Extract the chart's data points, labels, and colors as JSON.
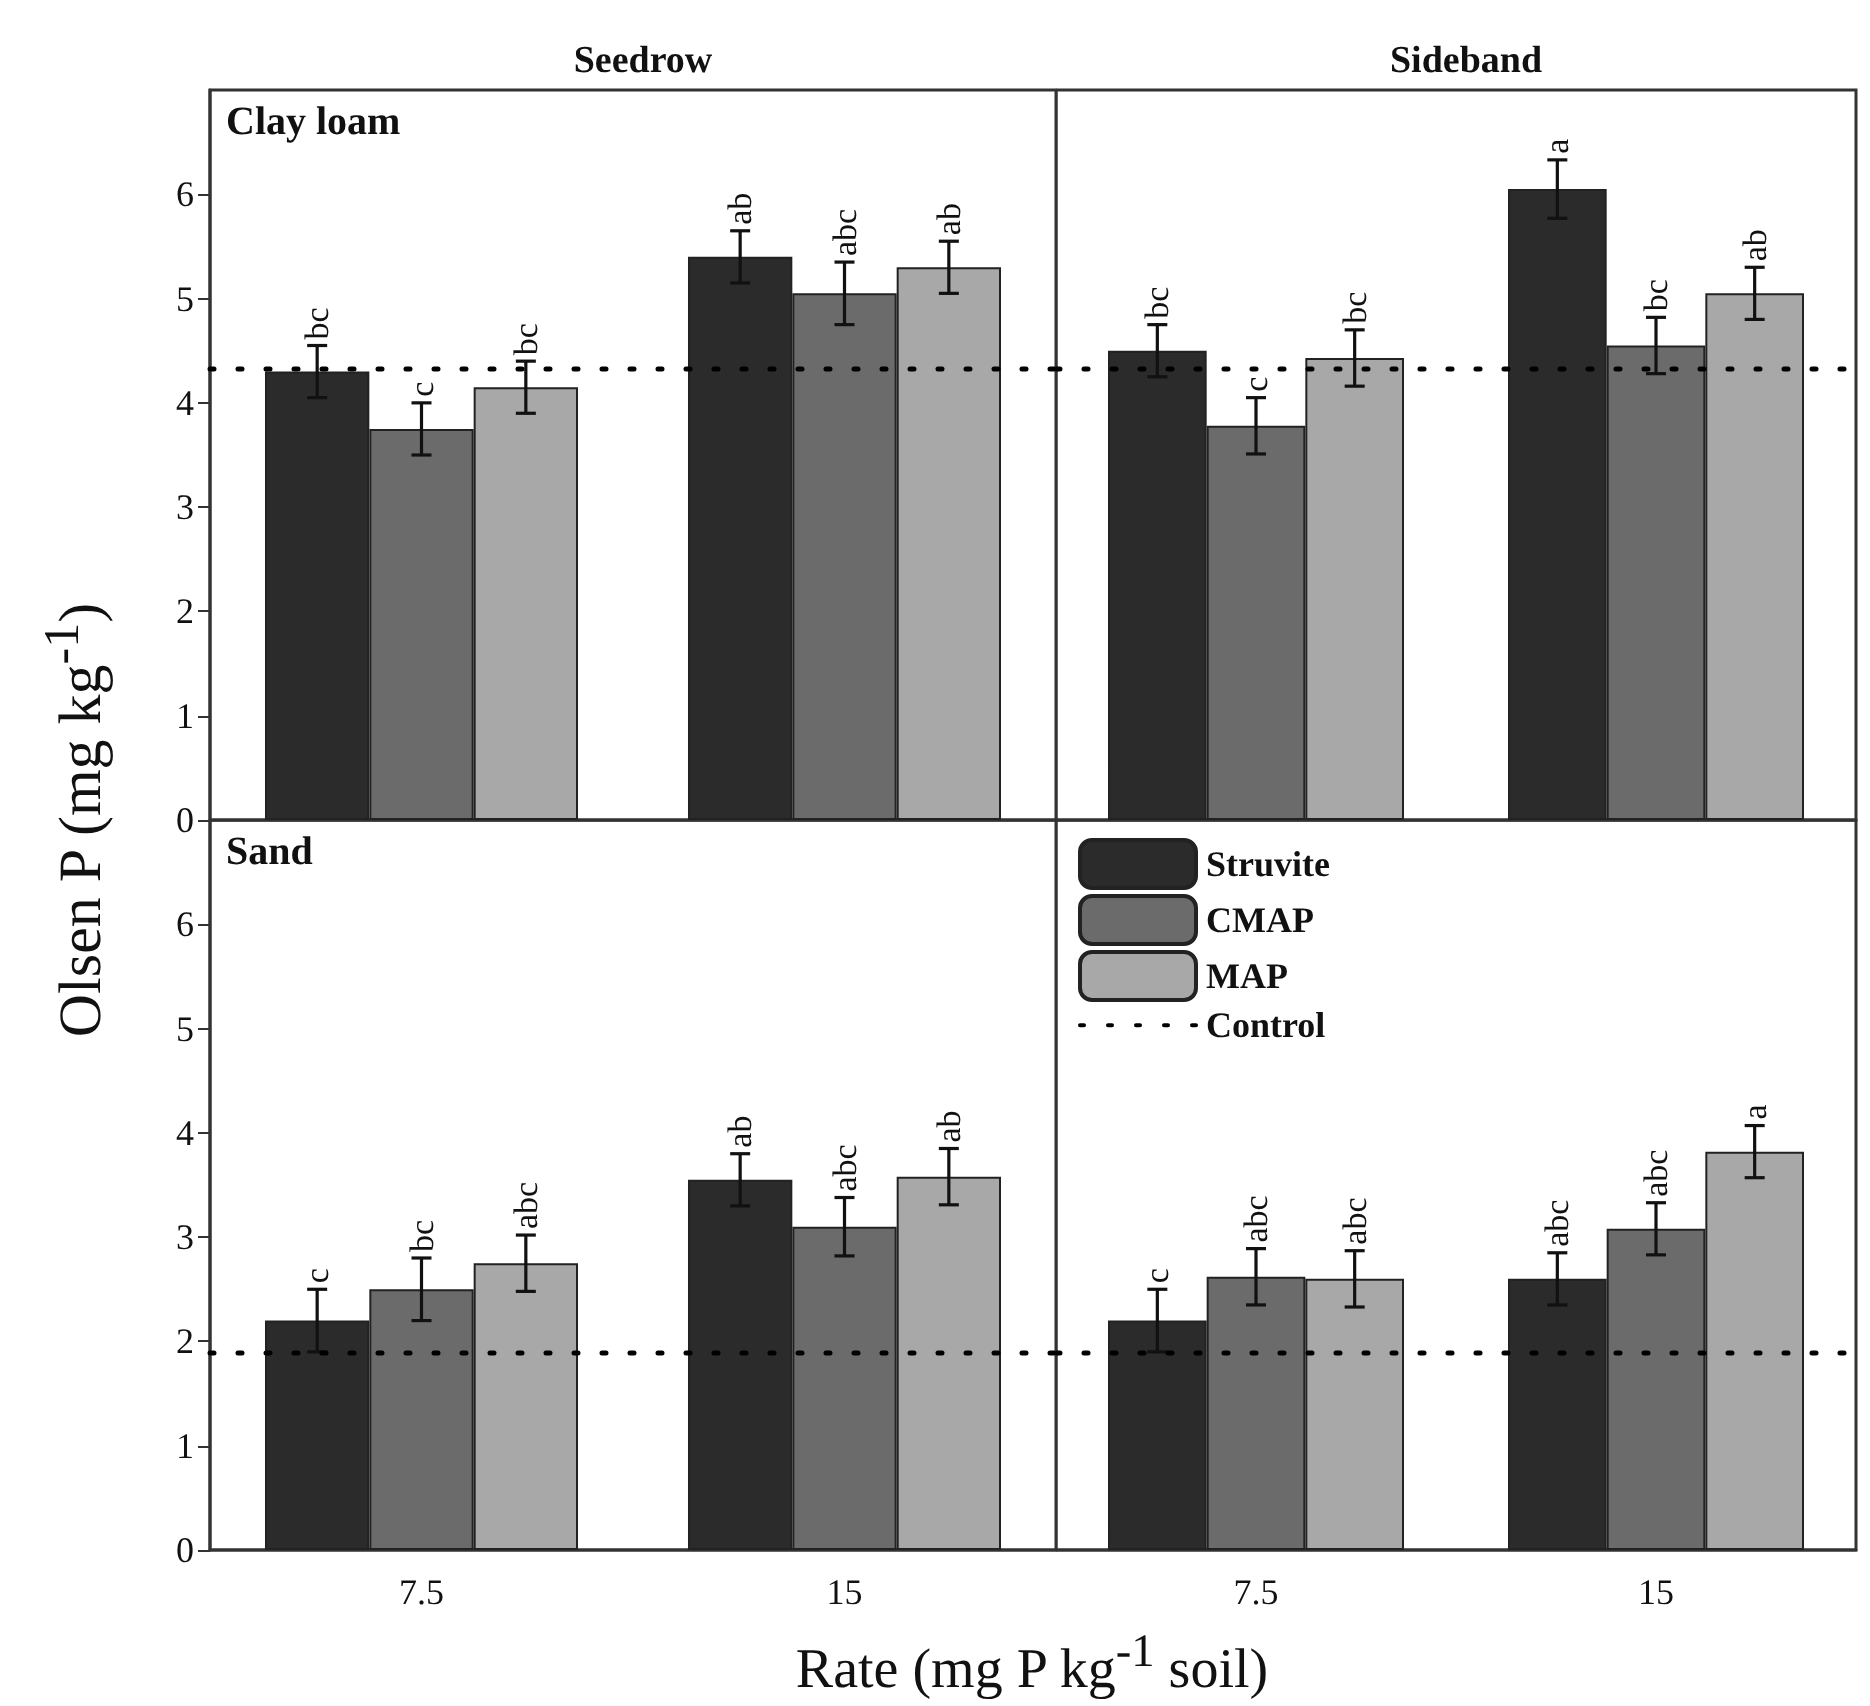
{
  "chart_data": [
    {
      "type": "bar",
      "title": "Seedrow",
      "ylabel": "Olsen P (mg kg$^{-1}$)",
      "annotations": [
        "Clay loam"
      ],
      "categories": [
        "7.5",
        "15"
      ],
      "ylim": [
        0,
        7
      ],
      "yticks": [
        0,
        1,
        2,
        3,
        4,
        5,
        6
      ],
      "tick_labels": "y",
      "series": [
        {
          "color": "#2b2b2b",
          "values": [
            4.3,
            5.4
          ],
          "errors": [
            0.25,
            0.25
          ],
          "value_labels": [
            "bc",
            "ab"
          ]
        },
        {
          "color": "#6b6b6b",
          "values": [
            3.75,
            5.05
          ],
          "errors": [
            0.25,
            0.3
          ],
          "value_labels": [
            "c",
            "abc"
          ]
        },
        {
          "color": "#a8a8a8",
          "values": [
            4.15,
            5.3
          ],
          "errors": [
            0.25,
            0.25
          ],
          "value_labels": [
            "bc",
            "ab"
          ]
        }
      ],
      "ref_lines": [
        {
          "axis": "y",
          "value": 4.33,
          "color": "#000000",
          "line_style": "dotted"
        }
      ]
    },
    {
      "type": "bar",
      "title": "Sideband",
      "categories": [
        "7.5",
        "15"
      ],
      "ylim": [
        0,
        7
      ],
      "yticks": [
        0,
        1,
        2,
        3,
        4,
        5,
        6
      ],
      "tick_labels": false,
      "series": [
        {
          "color": "#2b2b2b",
          "values": [
            4.5,
            6.05
          ],
          "errors": [
            0.25,
            0.28
          ],
          "value_labels": [
            "bc",
            "a"
          ]
        },
        {
          "color": "#6b6b6b",
          "values": [
            3.78,
            4.55
          ],
          "errors": [
            0.27,
            0.27
          ],
          "value_labels": [
            "c",
            "bc"
          ]
        },
        {
          "color": "#a8a8a8",
          "values": [
            4.43,
            5.05
          ],
          "errors": [
            0.27,
            0.25
          ],
          "value_labels": [
            "bc",
            "ab"
          ]
        }
      ],
      "ref_lines": [
        {
          "axis": "y",
          "value": 4.33,
          "color": "#000000",
          "line_style": "dotted"
        }
      ]
    },
    {
      "type": "bar",
      "xlabel": "Rate (mg P kg$^{-1}$ soil)",
      "annotations": [
        "Sand"
      ],
      "categories": [
        "7.5",
        "15"
      ],
      "ylim": [
        0,
        7
      ],
      "yticks": [
        0,
        1,
        2,
        3,
        4,
        5,
        6
      ],
      "series": [
        {
          "color": "#2b2b2b",
          "values": [
            2.2,
            3.55
          ],
          "errors": [
            0.3,
            0.25
          ],
          "value_labels": [
            "c",
            "ab"
          ]
        },
        {
          "color": "#6b6b6b",
          "values": [
            2.5,
            3.1
          ],
          "errors": [
            0.3,
            0.28
          ],
          "value_labels": [
            "bc",
            "abc"
          ]
        },
        {
          "color": "#a8a8a8",
          "values": [
            2.75,
            3.58
          ],
          "errors": [
            0.27,
            0.27
          ],
          "value_labels": [
            "abc",
            "ab"
          ]
        }
      ],
      "ref_lines": [
        {
          "axis": "y",
          "value": 1.9,
          "color": "#000000",
          "line_style": "dotted"
        }
      ]
    },
    {
      "type": "bar",
      "categories": [
        "7.5",
        "15"
      ],
      "ylim": [
        0,
        7
      ],
      "yticks": [
        0,
        1,
        2,
        3,
        4,
        5,
        6
      ],
      "tick_labels": "x",
      "legend": "top left",
      "series": [
        {
          "name": "Struvite",
          "color": "#2b2b2b",
          "values": [
            2.2,
            2.6
          ],
          "errors": [
            0.3,
            0.25
          ],
          "value_labels": [
            "c",
            "abc"
          ]
        },
        {
          "name": "CMAP",
          "color": "#6b6b6b",
          "values": [
            2.62,
            3.08
          ],
          "errors": [
            0.27,
            0.25
          ],
          "value_labels": [
            "abc",
            "abc"
          ]
        },
        {
          "name": "MAP",
          "color": "#a8a8a8",
          "values": [
            2.6,
            3.82
          ],
          "errors": [
            0.27,
            0.25
          ],
          "value_labels": [
            "abc",
            "a"
          ]
        }
      ],
      "ref_lines": [
        {
          "axis": "y",
          "value": 1.9,
          "label": "Control",
          "color": "#000000",
          "line_style": "dotted"
        }
      ]
    }
  ]
}
